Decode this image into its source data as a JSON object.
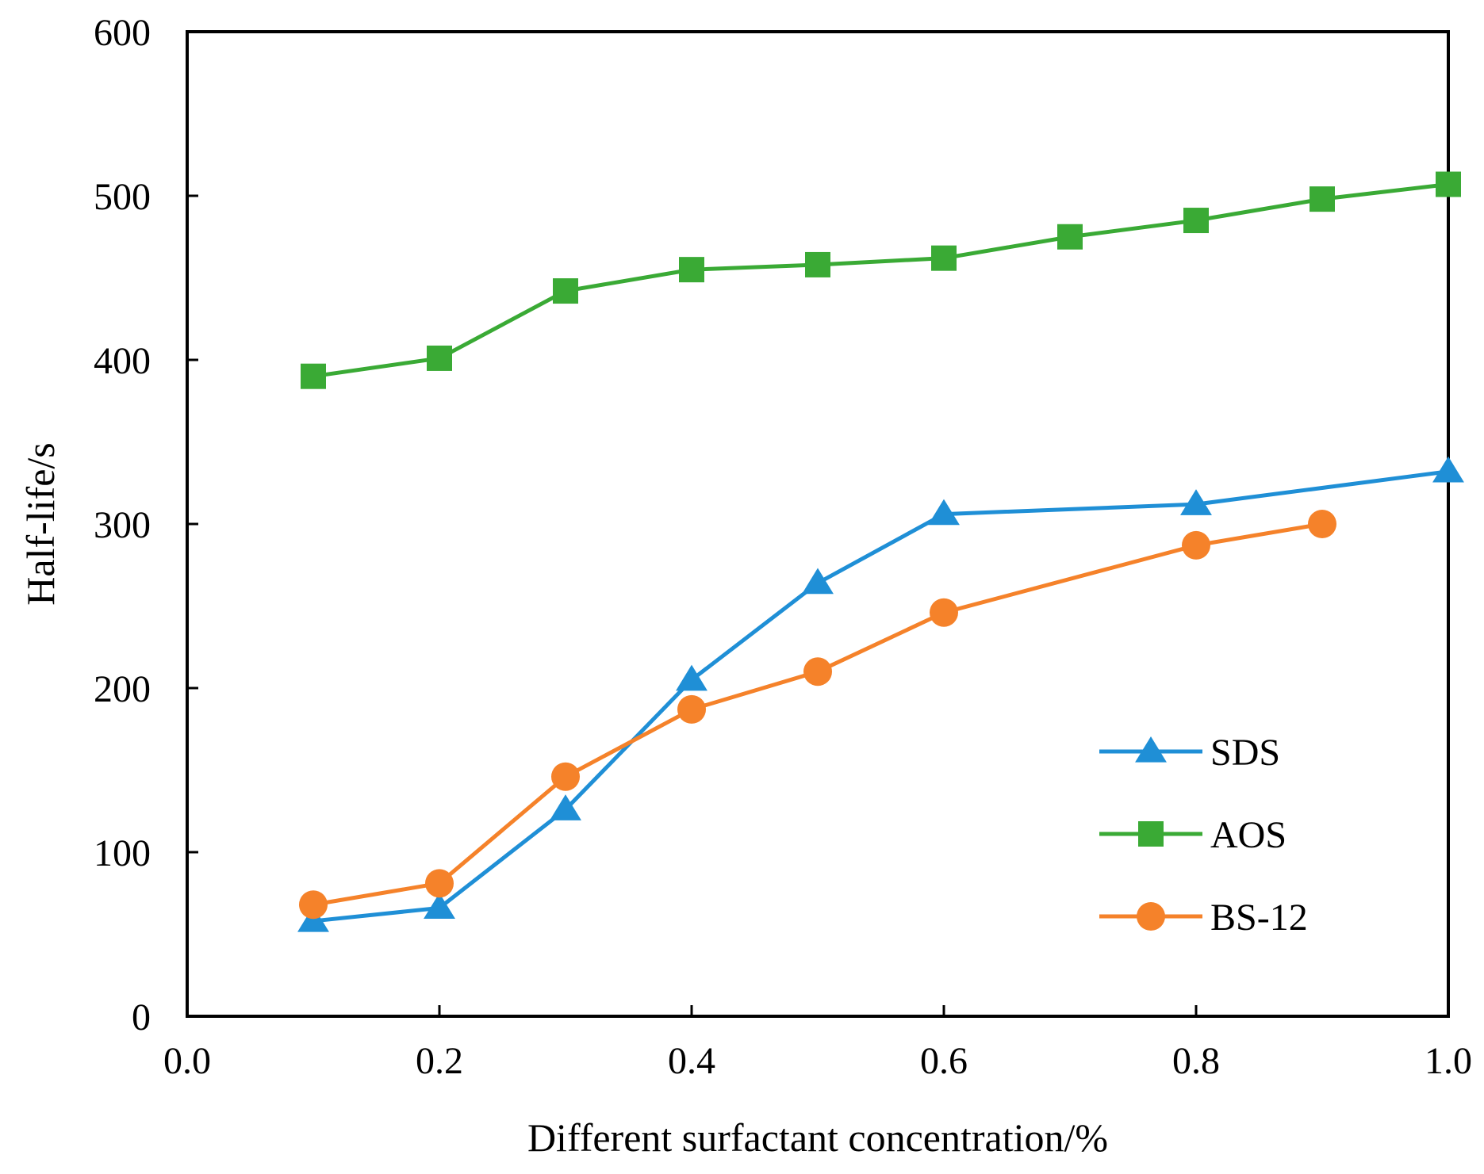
{
  "chart_data": {
    "type": "line",
    "title": "",
    "xlabel": "Different surfactant concentration/%",
    "ylabel": "Half-life/s",
    "xlim": [
      0.0,
      1.0
    ],
    "ylim": [
      0,
      600
    ],
    "xticks": [
      "0.0",
      "0.2",
      "0.4",
      "0.6",
      "0.8",
      "1.0"
    ],
    "yticks": [
      "0",
      "100",
      "200",
      "300",
      "400",
      "500",
      "600"
    ],
    "grid": false,
    "legend_position": "lower-right",
    "series": [
      {
        "name": "SDS",
        "color": "#1f8fd6",
        "marker": "triangle",
        "x": [
          0.1,
          0.2,
          0.3,
          0.4,
          0.5,
          0.6,
          0.8,
          1.0
        ],
        "values": [
          58,
          66,
          126,
          205,
          264,
          306,
          312,
          332
        ]
      },
      {
        "name": "AOS",
        "color": "#3aaa35",
        "marker": "square",
        "x": [
          0.1,
          0.2,
          0.3,
          0.4,
          0.5,
          0.6,
          0.7,
          0.8,
          0.9,
          1.0
        ],
        "values": [
          390,
          401,
          442,
          455,
          458,
          462,
          475,
          485,
          498,
          507
        ]
      },
      {
        "name": "BS-12",
        "color": "#f5822a",
        "marker": "circle",
        "x": [
          0.1,
          0.2,
          0.3,
          0.4,
          0.5,
          0.6,
          0.8,
          0.9
        ],
        "values": [
          68,
          81,
          146,
          187,
          210,
          246,
          287,
          300
        ]
      }
    ]
  }
}
